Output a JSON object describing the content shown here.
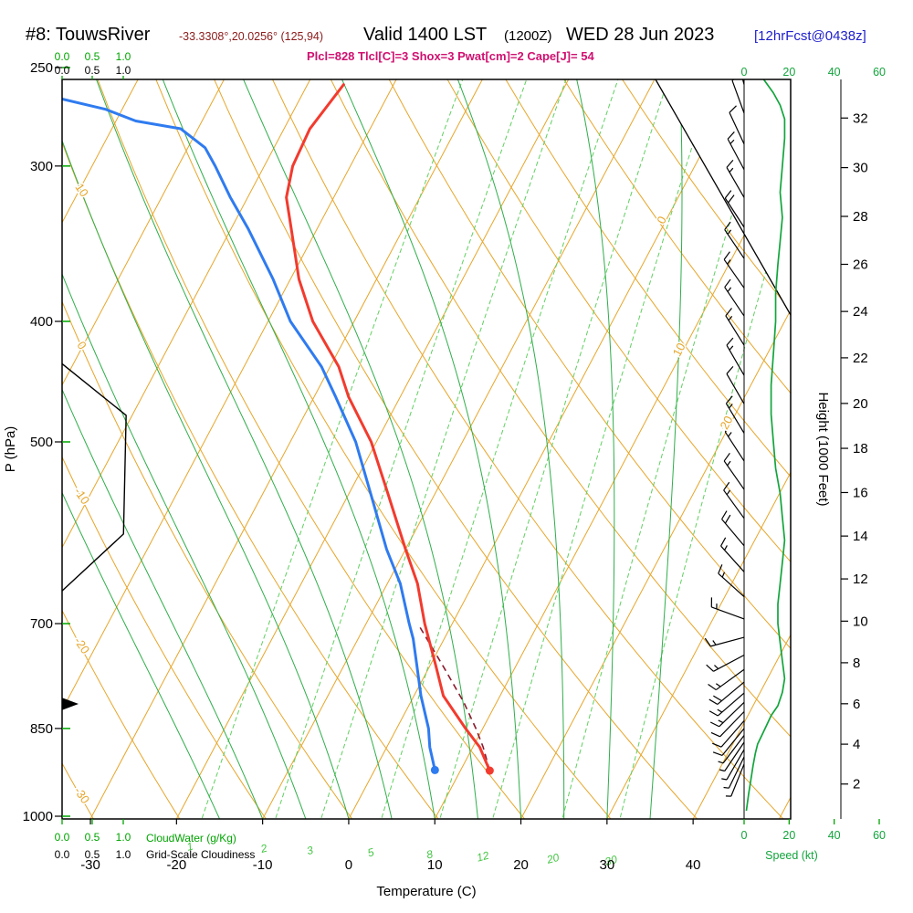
{
  "header": {
    "station": "#8: TouwsRiver",
    "coords": "-33.3308°,20.0256° (125,94)",
    "valid_label": "Valid 1400 LST",
    "valid_utc": "(1200Z)",
    "valid_date": "WED 28 Jun 2023",
    "forecast_tag": "[12hrFcst@0438z]",
    "indices_line": "Plcl=828 Tlcl[C]=3 Shox=3 Pwat[cm]=2 Cape[J]= 54"
  },
  "axes": {
    "pressure": {
      "label": "P (hPa)",
      "ticks": [
        250,
        300,
        400,
        500,
        700,
        850,
        1000
      ]
    },
    "temperature": {
      "label": "Temperature (C)",
      "ticks": [
        -30,
        -20,
        -10,
        0,
        10,
        20,
        30,
        40
      ]
    },
    "height": {
      "label": "Height (1000 Feet)",
      "ticks": [
        2,
        4,
        6,
        8,
        10,
        12,
        14,
        16,
        18,
        20,
        22,
        24,
        26,
        28,
        30,
        32
      ]
    },
    "speed": {
      "label": "Speed (kt)",
      "ticks": [
        0,
        20,
        40,
        60
      ]
    },
    "cloudwater": {
      "label": "CloudWater (g/Kg)",
      "ticks": [
        "0.0",
        "0.5",
        "1.0"
      ]
    },
    "cloudiness": {
      "label": "Grid-Scale Cloudiness",
      "ticks": [
        "0.0",
        "0.5",
        "1.0"
      ]
    }
  },
  "chart_data": {
    "type": "skewt-log-p sounding",
    "pressure_range_hpa": [
      250,
      1005
    ],
    "pressure_scale": "log",
    "temperature_range_c_at_surface": [
      -33,
      45
    ],
    "grid": {
      "isotherms": {
        "min": -120,
        "max": 60,
        "step": 10
      },
      "dry_adiabats": {
        "min": -40,
        "max": 160,
        "step": 10
      },
      "moist_adiabats": [
        -15,
        -10,
        -5,
        0,
        5,
        10,
        15,
        20,
        25,
        30,
        35
      ],
      "mixing_ratios": [
        1,
        2,
        3,
        5,
        8,
        12,
        20,
        30
      ]
    },
    "grid_labels": {
      "isotherms": [
        {
          "t": 0,
          "y": 243
        },
        {
          "t": 10,
          "y": 385
        },
        {
          "t": 20,
          "y": 465
        }
      ],
      "dry_adiabats": [
        10,
        0,
        -10,
        -20,
        -30
      ]
    },
    "series": {
      "temperature": [
        [
          258,
          -45.8
        ],
        [
          280,
          -47.0
        ],
        [
          300,
          -46.7
        ],
        [
          318,
          -45.5
        ],
        [
          337,
          -43.0
        ],
        [
          370,
          -39.0
        ],
        [
          400,
          -34.8
        ],
        [
          435,
          -29.0
        ],
        [
          460,
          -26.0
        ],
        [
          500,
          -20.6
        ],
        [
          550,
          -15.5
        ],
        [
          610,
          -10.0
        ],
        [
          650,
          -6.5
        ],
        [
          700,
          -3.2
        ],
        [
          757,
          0.7
        ],
        [
          800,
          3.4
        ],
        [
          850,
          8.0
        ],
        [
          880,
          10.8
        ],
        [
          919,
          13.4
        ]
      ],
      "dewpoint": [
        [
          265,
          -77.6
        ],
        [
          270,
          -72.0
        ],
        [
          276,
          -67.7
        ],
        [
          280,
          -62.0
        ],
        [
          290,
          -58.0
        ],
        [
          300,
          -55.7
        ],
        [
          318,
          -52.0
        ],
        [
          337,
          -48.0
        ],
        [
          370,
          -42.0
        ],
        [
          400,
          -37.4
        ],
        [
          435,
          -31.0
        ],
        [
          460,
          -27.5
        ],
        [
          500,
          -22.4
        ],
        [
          550,
          -17.5
        ],
        [
          610,
          -12.2
        ],
        [
          650,
          -8.5
        ],
        [
          700,
          -5.0
        ],
        [
          720,
          -3.6
        ],
        [
          757,
          -1.5
        ],
        [
          800,
          0.8
        ],
        [
          850,
          3.7
        ],
        [
          880,
          5.0
        ],
        [
          918,
          7.0
        ]
      ],
      "parcel": [
        [
          919,
          13.4
        ],
        [
          880,
          11.2
        ],
        [
          850,
          9.2
        ],
        [
          810,
          6.2
        ],
        [
          760,
          1.8
        ],
        [
          700,
          -4.0
        ]
      ],
      "aux_line": [
        [
          430,
          -62.0
        ],
        [
          476,
          -50.7
        ],
        [
          593,
          -43.7
        ],
        [
          662,
          -47.5
        ]
      ],
      "wind_speed_kt": [
        [
          252,
          6
        ],
        [
          256,
          9
        ],
        [
          262,
          13
        ],
        [
          268,
          16
        ],
        [
          275,
          18
        ],
        [
          285,
          18
        ],
        [
          300,
          17
        ],
        [
          315,
          16
        ],
        [
          330,
          17
        ],
        [
          345,
          16
        ],
        [
          360,
          15
        ],
        [
          380,
          14
        ],
        [
          400,
          14
        ],
        [
          425,
          13
        ],
        [
          450,
          12
        ],
        [
          475,
          12
        ],
        [
          500,
          13
        ],
        [
          525,
          14
        ],
        [
          550,
          16
        ],
        [
          575,
          17
        ],
        [
          600,
          18
        ],
        [
          625,
          17
        ],
        [
          650,
          16
        ],
        [
          675,
          15
        ],
        [
          700,
          15
        ],
        [
          725,
          16
        ],
        [
          750,
          17
        ],
        [
          775,
          18
        ],
        [
          795,
          17
        ],
        [
          815,
          15
        ],
        [
          830,
          12
        ],
        [
          845,
          10
        ],
        [
          860,
          8
        ],
        [
          875,
          6
        ],
        [
          890,
          5
        ],
        [
          910,
          4
        ],
        [
          935,
          3
        ],
        [
          960,
          2
        ],
        [
          990,
          1
        ]
      ],
      "wind_barbs": [
        [
          258,
          5,
          -15
        ],
        [
          272,
          8,
          -20
        ],
        [
          288,
          10,
          -25
        ],
        [
          302,
          15,
          -28
        ],
        [
          318,
          15,
          -30
        ],
        [
          336,
          18,
          -33
        ],
        [
          356,
          17,
          -34
        ],
        [
          376,
          15,
          -35
        ],
        [
          396,
          15,
          -34
        ],
        [
          418,
          14,
          -32
        ],
        [
          442,
          13,
          -30
        ],
        [
          466,
          12,
          -30
        ],
        [
          492,
          13,
          -31
        ],
        [
          518,
          14,
          -33
        ],
        [
          546,
          16,
          -35
        ],
        [
          576,
          17,
          -36
        ],
        [
          606,
          18,
          -40
        ],
        [
          636,
          16,
          -42
        ],
        [
          666,
          15,
          -48
        ],
        [
          694,
          15,
          -70
        ],
        [
          718,
          15,
          -105
        ],
        [
          742,
          16,
          -118
        ],
        [
          762,
          17,
          -126
        ],
        [
          780,
          18,
          -130
        ],
        [
          796,
          16,
          -131
        ],
        [
          810,
          14,
          -134
        ],
        [
          824,
          12,
          -136
        ],
        [
          838,
          10,
          -139
        ],
        [
          850,
          9,
          -141
        ],
        [
          861,
          7,
          -143
        ],
        [
          872,
          6,
          -146
        ],
        [
          884,
          5,
          -150
        ],
        [
          896,
          4,
          -154
        ],
        [
          908,
          3,
          -158
        ]
      ]
    },
    "surface_points": {
      "temperature_dot": [
        919,
        13.4
      ],
      "dewpoint_dot": [
        918,
        7.0
      ]
    },
    "colors": {
      "temperature": "#f23b2e",
      "dewpoint": "#2f7bf0",
      "parcel": "#8a1b2e",
      "isolines": "#e7a62a",
      "moist_adiabat": "#2fae4a",
      "mixing_ratio": "#5fd05f",
      "mixing_ratio_label": "#45c545",
      "wind_speed": "#12a53c",
      "axis_green": "#00a400",
      "indices_text": "#d01070",
      "coords_text": "#8b1a1a",
      "forecast_text": "#2020cc",
      "barbs": "#000000"
    }
  }
}
